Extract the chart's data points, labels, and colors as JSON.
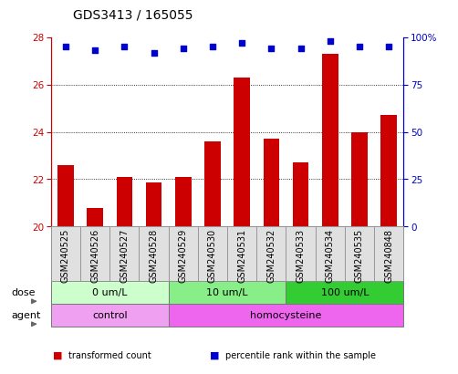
{
  "title": "GDS3413 / 165055",
  "samples": [
    "GSM240525",
    "GSM240526",
    "GSM240527",
    "GSM240528",
    "GSM240529",
    "GSM240530",
    "GSM240531",
    "GSM240532",
    "GSM240533",
    "GSM240534",
    "GSM240535",
    "GSM240848"
  ],
  "bar_values": [
    22.6,
    20.8,
    22.1,
    21.85,
    22.1,
    23.6,
    26.3,
    23.7,
    22.7,
    27.3,
    24.0,
    24.7
  ],
  "percentile_values": [
    95,
    93,
    95,
    92,
    94,
    95,
    97,
    94,
    94,
    98,
    95,
    95
  ],
  "bar_color": "#cc0000",
  "dot_color": "#0000cc",
  "ylim_left": [
    20,
    28
  ],
  "ylim_right": [
    0,
    100
  ],
  "yticks_left": [
    20,
    22,
    24,
    26,
    28
  ],
  "yticks_right": [
    0,
    25,
    50,
    75,
    100
  ],
  "ytick_labels_right": [
    "0",
    "25",
    "50",
    "75",
    "100%"
  ],
  "hgrid_at": [
    22,
    24,
    26
  ],
  "dose_groups": [
    {
      "label": "0 um/L",
      "start": 0,
      "end": 4,
      "color": "#ccffcc"
    },
    {
      "label": "10 um/L",
      "start": 4,
      "end": 8,
      "color": "#88ee88"
    },
    {
      "label": "100 um/L",
      "start": 8,
      "end": 12,
      "color": "#33cc33"
    }
  ],
  "agent_groups": [
    {
      "label": "control",
      "start": 0,
      "end": 4,
      "color": "#f0a0f0"
    },
    {
      "label": "homocysteine",
      "start": 4,
      "end": 12,
      "color": "#ee66ee"
    }
  ],
  "dose_label": "dose",
  "agent_label": "agent",
  "legend_red_label": "transformed count",
  "legend_blue_label": "percentile rank within the sample",
  "bar_color_leg": "#cc0000",
  "dot_color_leg": "#0000cc",
  "background_color": "#ffffff",
  "title_fontsize": 10,
  "axis_fontsize": 7.5,
  "label_fontsize": 8,
  "bar_width": 0.55
}
